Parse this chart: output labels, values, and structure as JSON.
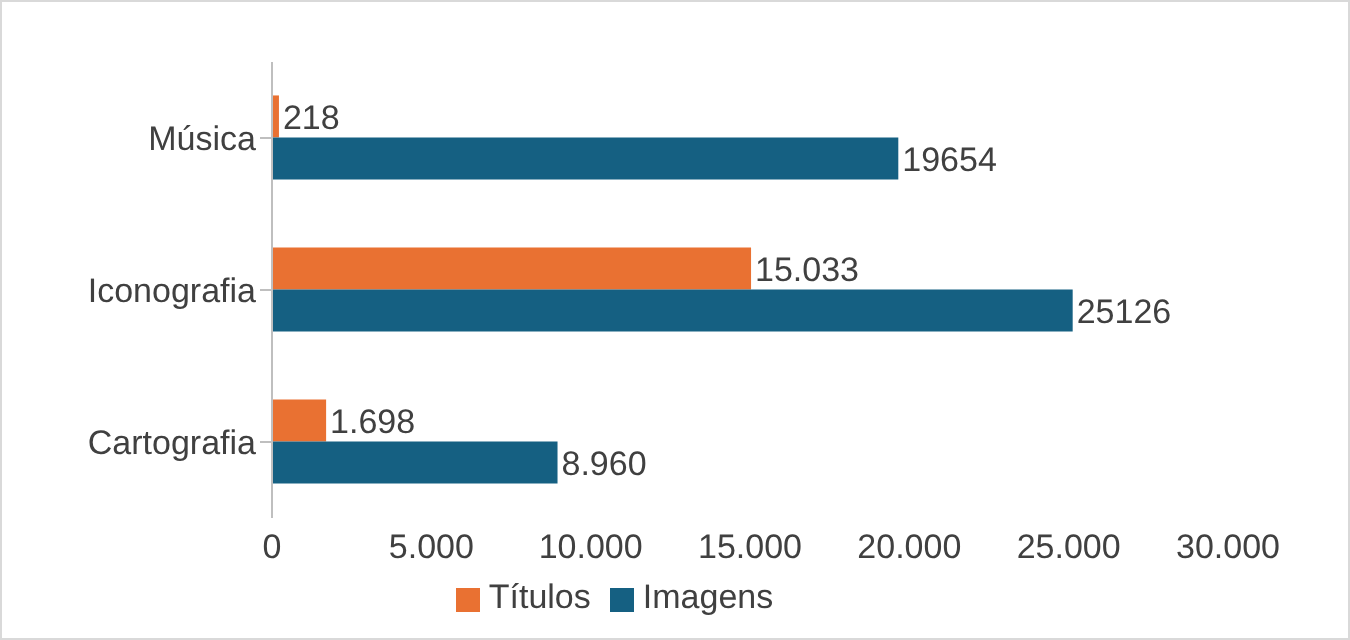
{
  "chart_data": {
    "type": "bar",
    "orientation": "horizontal",
    "categories": [
      "Música",
      "Iconografia",
      "Cartografia"
    ],
    "series": [
      {
        "name": "Títulos",
        "color": "#e97132",
        "values": [
          218,
          15033,
          1698
        ],
        "value_labels": [
          "218",
          "15.033",
          "1.698"
        ]
      },
      {
        "name": "Imagens",
        "color": "#156082",
        "values": [
          19654,
          25126,
          8960
        ],
        "value_labels": [
          "19654",
          "25126",
          "8.960"
        ]
      }
    ],
    "xlim": [
      0,
      30000
    ],
    "xticks": [
      0,
      {
        "value": 5000,
        "label": "5.000"
      },
      {
        "value": 10000,
        "label": "10.000"
      },
      {
        "value": 15000,
        "label": "15.000"
      },
      {
        "value": 20000,
        "label": "20.000"
      },
      {
        "value": 25000,
        "label": "25.000"
      },
      {
        "value": 30000,
        "label": "30.000"
      }
    ],
    "grid": false,
    "legend": "bottom"
  }
}
